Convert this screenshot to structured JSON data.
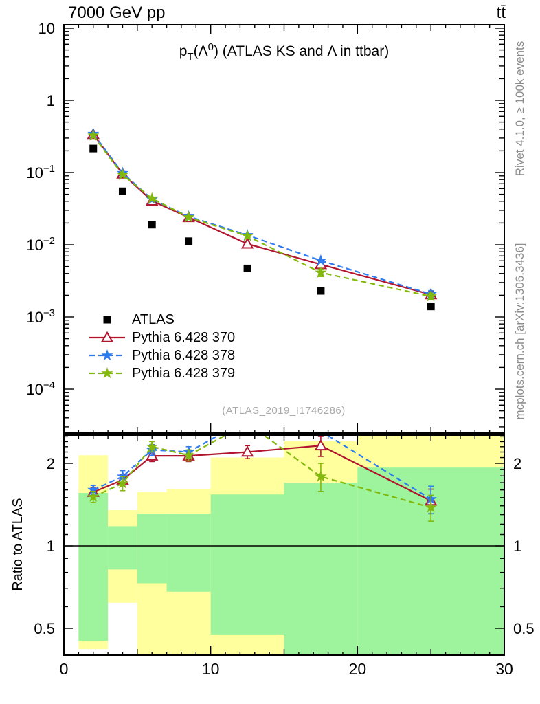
{
  "header": {
    "left": "7000 GeV pp",
    "right": "tt̄"
  },
  "title": {
    "base": "p",
    "sub": "T",
    "mid": "(Λ",
    "sup": "0",
    "rest": ") (ATLAS KS and Λ in ttbar)"
  },
  "watermark": "(ATLAS_2019_I1746286)",
  "side_notes": {
    "top": "Rivet 4.1.0, ≥ 100k events",
    "bottom": "mcplots.cern.ch [arXiv:1306.3436]"
  },
  "ratio_ylabel": "Ratio to ATLAS",
  "legend": {
    "entries": [
      {
        "label": "ATLAS",
        "marker": "square",
        "color": "#000000",
        "line": "none"
      },
      {
        "label": "Pythia 6.428 370",
        "marker": "triangle",
        "color": "#b2152e",
        "line": "solid"
      },
      {
        "label": "Pythia 6.428 378",
        "marker": "star",
        "color": "#2e7bf0",
        "line": "dash"
      },
      {
        "label": "Pythia 6.428 379",
        "marker": "star",
        "color": "#83b80d",
        "line": "dash"
      }
    ]
  },
  "chart_data": {
    "type": "line",
    "title": "pT(Λ0) (ATLAS KS and Λ in ttbar)",
    "xlabel": "",
    "ylabel_ratio": "Ratio to ATLAS",
    "xlim": [
      0,
      30
    ],
    "x_ticks": [
      0,
      10,
      20,
      30
    ],
    "x_bin_edges": [
      1,
      3,
      5,
      7,
      10,
      15,
      20,
      30
    ],
    "x": [
      2,
      4,
      6,
      8.5,
      12.5,
      17.5,
      25
    ],
    "main": {
      "ylog": true,
      "ylim": [
        2.4e-05,
        11
      ],
      "y_ticks": [
        10,
        1,
        0.1,
        0.01,
        0.001,
        0.0001
      ],
      "series": [
        {
          "name": "ATLAS",
          "values": [
            0.215,
            0.055,
            0.019,
            0.0112,
            0.0047,
            0.0023,
            0.0014
          ]
        },
        {
          "name": "Pythia 6.428 370",
          "values": [
            0.338,
            0.0957,
            0.0405,
            0.0239,
            0.0103,
            0.00534,
            0.00204
          ]
        },
        {
          "name": "Pythia 6.428 378",
          "values": [
            0.344,
            0.0985,
            0.0426,
            0.0246,
            0.0136,
            0.00603,
            0.00207
          ]
        },
        {
          "name": "Pythia 6.428 379",
          "values": [
            0.325,
            0.093,
            0.0437,
            0.024,
            0.0132,
            0.00412,
            0.00193
          ]
        }
      ]
    },
    "ratio": {
      "ylog": true,
      "ylim": [
        0.4,
        2.54
      ],
      "y_ticks": [
        2,
        1,
        0.5
      ],
      "series": [
        {
          "name": "Pythia 6.428 370",
          "values": [
            1.57,
            1.74,
            2.13,
            2.13,
            2.2,
            2.32,
            1.46
          ],
          "err": [
            0.06,
            0.08,
            0.1,
            0.1,
            0.12,
            0.2,
            0.15
          ]
        },
        {
          "name": "Pythia 6.428 378",
          "values": [
            1.6,
            1.79,
            2.24,
            2.2,
            2.9,
            2.62,
            1.48
          ],
          "err": [
            0.06,
            0.09,
            0.1,
            0.1,
            0,
            0,
            0.17
          ]
        },
        {
          "name": "Pythia 6.428 379",
          "values": [
            1.51,
            1.69,
            2.3,
            2.14,
            2.8,
            1.79,
            1.38
          ],
          "err": [
            0.07,
            0.1,
            0.1,
            0.1,
            0,
            0.21,
            0.15
          ]
        }
      ],
      "bands": [
        {
          "xlo": 1,
          "xhi": 3,
          "yellow": [
            0.42,
            2.14
          ],
          "green": [
            0.45,
            1.56
          ]
        },
        {
          "xlo": 3,
          "xhi": 5,
          "yellow": [
            0.62,
            1.35
          ],
          "green": [
            0.82,
            1.18
          ]
        },
        {
          "xlo": 5,
          "xhi": 7,
          "yellow": [
            0.4,
            1.57
          ],
          "green": [
            0.73,
            1.31
          ]
        },
        {
          "xlo": 7,
          "xhi": 10,
          "yellow": [
            0.4,
            1.61
          ],
          "green": [
            0.68,
            1.31
          ]
        },
        {
          "xlo": 10,
          "xhi": 15,
          "yellow": [
            0.4,
            2.1
          ],
          "green": [
            0.475,
            1.54
          ]
        },
        {
          "xlo": 15,
          "xhi": 20,
          "yellow": [
            0.4,
            2.41
          ],
          "green": [
            0.4,
            1.7
          ]
        },
        {
          "xlo": 20,
          "xhi": 30,
          "yellow": [
            0.4,
            2.6
          ],
          "green": [
            0.4,
            1.93
          ]
        }
      ]
    },
    "colors": {
      "atlas": "#000000",
      "p370": "#b2152e",
      "p378": "#2e7bf0",
      "p379": "#83b80d",
      "yellow_band": "#ffff9d",
      "green_band": "#9df49d"
    }
  }
}
